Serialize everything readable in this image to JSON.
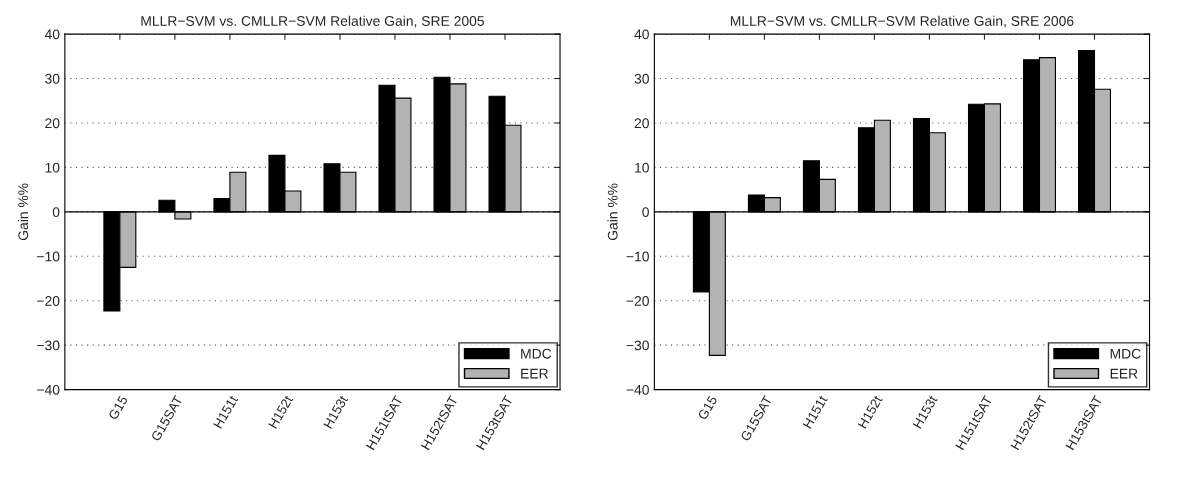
{
  "chart_data": [
    {
      "type": "bar",
      "title": "MLLR−SVM vs. CMLLR−SVM Relative Gain, SRE 2005",
      "ylabel": "Gain %%",
      "categories": [
        "G15",
        "G15SAT",
        "H151t",
        "H152t",
        "H153t",
        "H151tSAT",
        "H152tSAT",
        "H153tSAT"
      ],
      "series": [
        {
          "name": "MDC",
          "color": "#000000",
          "values": [
            -22.3,
            2.6,
            3.0,
            12.7,
            10.8,
            28.5,
            30.3,
            26.0
          ]
        },
        {
          "name": "EER",
          "color": "#b3b3b3",
          "values": [
            -12.5,
            -1.6,
            8.9,
            4.7,
            8.9,
            25.6,
            28.8,
            19.5
          ]
        }
      ],
      "ylim": [
        -40,
        40
      ],
      "yticks": [
        {
          "value": -40,
          "label": "−40"
        },
        {
          "value": -30,
          "label": "−30"
        },
        {
          "value": -20,
          "label": "−20"
        },
        {
          "value": -10,
          "label": "−10"
        },
        0,
        10,
        20,
        30,
        40
      ],
      "grid": "y",
      "legend": "bottom right"
    },
    {
      "type": "bar",
      "title": "MLLR−SVM vs. CMLLR−SVM Relative Gain, SRE 2006",
      "ylabel": "Gain %%",
      "categories": [
        "G15",
        "G15SAT",
        "H151t",
        "H152t",
        "H153t",
        "H151tSAT",
        "H152tSAT",
        "H153tSAT"
      ],
      "series": [
        {
          "name": "MDC",
          "color": "#000000",
          "values": [
            -18.0,
            3.8,
            11.5,
            18.9,
            21.0,
            24.2,
            34.2,
            36.3
          ]
        },
        {
          "name": "EER",
          "color": "#b3b3b3",
          "values": [
            -32.3,
            3.2,
            7.3,
            20.6,
            17.8,
            24.3,
            34.7,
            27.6
          ]
        }
      ],
      "ylim": [
        -40,
        40
      ],
      "yticks": [
        {
          "value": -40,
          "label": "−40"
        },
        {
          "value": -30,
          "label": "−30"
        },
        {
          "value": -20,
          "label": "−20"
        },
        {
          "value": -10,
          "label": "−10"
        },
        0,
        10,
        20,
        30,
        40
      ],
      "grid": "y",
      "legend": "bottom right"
    }
  ]
}
